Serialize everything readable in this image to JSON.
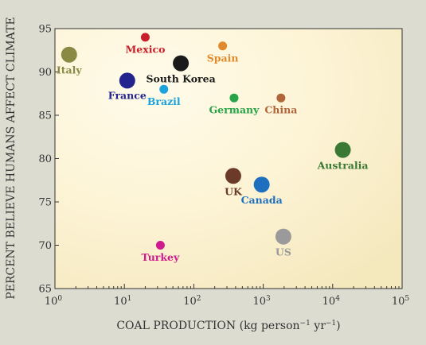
{
  "chart_data": {
    "type": "scatter",
    "xlabel_prefix": "COAL PRODUCTION (kg person",
    "xlabel_exp1": "−1",
    "xlabel_mid": " yr",
    "xlabel_exp2": "−1",
    "xlabel_suffix": ")",
    "ylabel": "PERCENT BELIEVE HUMANS AFFECT CLIMATE",
    "x_scale": "log",
    "xlim": [
      1,
      100000
    ],
    "ylim": [
      65,
      95
    ],
    "x_ticks": [
      {
        "value": 1,
        "base": "10",
        "exp": "0"
      },
      {
        "value": 10,
        "base": "10",
        "exp": "1"
      },
      {
        "value": 100,
        "base": "10",
        "exp": "2"
      },
      {
        "value": 1000,
        "base": "10",
        "exp": "3"
      },
      {
        "value": 10000,
        "base": "10",
        "exp": "4"
      },
      {
        "value": 100000,
        "base": "10",
        "exp": "5"
      }
    ],
    "y_ticks": [
      65,
      70,
      75,
      80,
      85,
      90,
      95
    ],
    "grid": false,
    "points": [
      {
        "label": "Italy",
        "x": 1.6,
        "y": 92,
        "size": "large",
        "color": "#8a8a45",
        "label_pos": "below"
      },
      {
        "label": "Mexico",
        "x": 20,
        "y": 94,
        "size": "small",
        "color": "#c8202a",
        "label_pos": "below"
      },
      {
        "label": "France",
        "x": 11,
        "y": 89,
        "size": "large",
        "color": "#23238f",
        "label_pos": "below-left"
      },
      {
        "label": "Brazil",
        "x": 37,
        "y": 88,
        "size": "small",
        "color": "#1aa3dc",
        "label_pos": "below"
      },
      {
        "label": "South Korea",
        "x": 65,
        "y": 91,
        "size": "large",
        "color": "#1a1a1a",
        "label_pos": "below"
      },
      {
        "label": "Spain",
        "x": 260,
        "y": 93,
        "size": "small",
        "color": "#e08a2c",
        "label_pos": "below"
      },
      {
        "label": "Germany",
        "x": 380,
        "y": 87,
        "size": "small",
        "color": "#27a348",
        "label_pos": "below"
      },
      {
        "label": "China",
        "x": 1800,
        "y": 87,
        "size": "small",
        "color": "#b0653a",
        "label_pos": "below"
      },
      {
        "label": "Australia",
        "x": 14000,
        "y": 81,
        "size": "large",
        "color": "#3a7a35",
        "label_pos": "below"
      },
      {
        "label": "UK",
        "x": 370,
        "y": 78,
        "size": "large",
        "color": "#6b3a28",
        "label_pos": "below"
      },
      {
        "label": "Canada",
        "x": 950,
        "y": 77,
        "size": "large",
        "color": "#1f6fc0",
        "label_pos": "below"
      },
      {
        "label": "Turkey",
        "x": 33,
        "y": 70,
        "size": "small",
        "color": "#d01a8f",
        "label_pos": "below"
      },
      {
        "label": "US",
        "x": 1950,
        "y": 71,
        "size": "large",
        "color": "#9a9a9a",
        "label_pos": "below"
      }
    ]
  }
}
